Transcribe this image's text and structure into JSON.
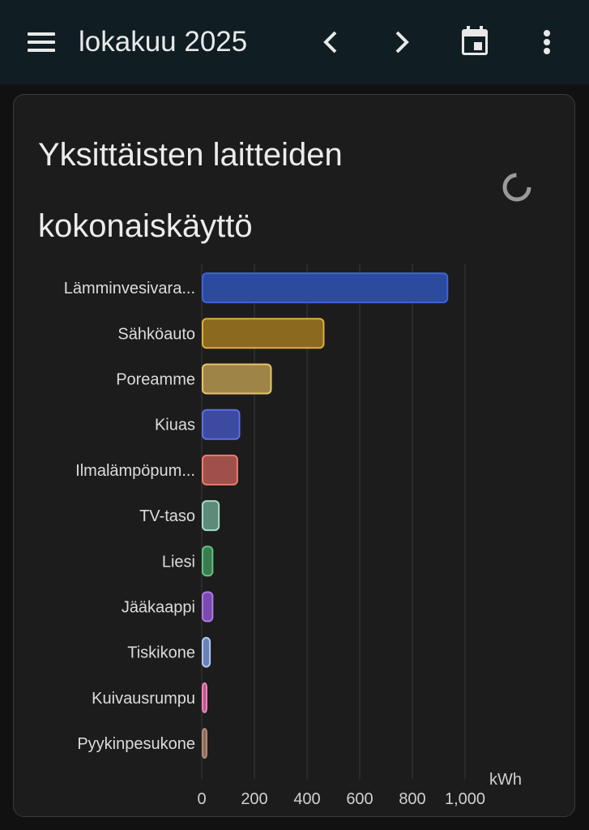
{
  "header": {
    "title": "lokakuu 2025",
    "menu_icon": "menu-icon",
    "prev_icon": "chevron-left-icon",
    "next_icon": "chevron-right-icon",
    "calendar_icon": "calendar-today-icon",
    "more_icon": "more-vertical-icon"
  },
  "card": {
    "title": "Yksittäisten laitteiden kokonaiskäyttö",
    "loading_icon": "loading-spinner-icon"
  },
  "chart_data": {
    "type": "bar",
    "orientation": "horizontal",
    "categories": [
      "Lämminvesivara...",
      "Sähköauto",
      "Poreamme",
      "Kiuas",
      "Ilmalämpöpum...",
      "TV-taso",
      "Liesi",
      "Jääkaappi",
      "Tiskikone",
      "Kuivausrumpu",
      "Pyykinpesukone"
    ],
    "values": [
      930,
      460,
      260,
      140,
      132,
      62,
      38,
      38,
      28,
      14,
      12
    ],
    "colors": [
      "#2c4a9e",
      "#8a6a1e",
      "#9e8446",
      "#3c4aa0",
      "#a0504a",
      "#5e8a7a",
      "#3c7a50",
      "#7a4ab0",
      "#6a82b8",
      "#b85a8a",
      "#8a6a5a"
    ],
    "border_colors": [
      "#3d63d6",
      "#e0ad38",
      "#e8c46a",
      "#5d70e6",
      "#f07a6e",
      "#a6dcc6",
      "#62c484",
      "#b07ae6",
      "#b2c8f2",
      "#f080c0",
      "#b08a78"
    ],
    "xlabel": "kWh",
    "xlim": [
      0,
      1000
    ],
    "xticks": [
      "0",
      "200",
      "400",
      "600",
      "800",
      "1,000"
    ],
    "grid": true
  }
}
